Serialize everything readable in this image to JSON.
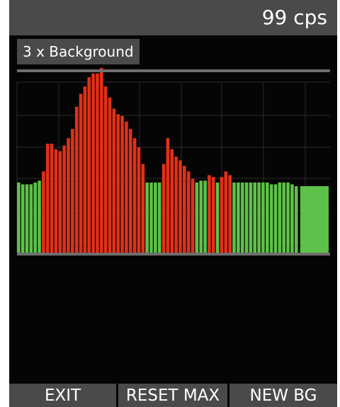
{
  "header": {
    "cps_text": "99 cps"
  },
  "mode": {
    "label": "3 x Background"
  },
  "softkeys": [
    {
      "label": "EXIT"
    },
    {
      "label": "RESET MAX"
    },
    {
      "label": "NEW BG"
    }
  ],
  "colors": {
    "below_threshold": "#5ec149",
    "above_threshold": "#e23018",
    "reference_line": "#6e6e6e",
    "grid": "#2a2a2a"
  },
  "chart_data": {
    "type": "bar",
    "ylim": [
      0,
      100
    ],
    "grid": true,
    "threshold_fraction_of_max": 0.38,
    "values": [
      38,
      37,
      37,
      37,
      38,
      39,
      44,
      59,
      59,
      56,
      55,
      58,
      62,
      67,
      79,
      86,
      90,
      95,
      97,
      97,
      100,
      90,
      84,
      78,
      75,
      74,
      71,
      67,
      62,
      57,
      48,
      38,
      38,
      38,
      38,
      48,
      62,
      56,
      52,
      50,
      47,
      44,
      40,
      38,
      39,
      39,
      42,
      41,
      38,
      41,
      44,
      42,
      38,
      38,
      38,
      38,
      38,
      38,
      38,
      38,
      38,
      37,
      37,
      38,
      38,
      38,
      37,
      36
    ],
    "categories_over_threshold": [
      6,
      7,
      8,
      9,
      10,
      11,
      12,
      13,
      14,
      15,
      16,
      17,
      18,
      19,
      20,
      21,
      22,
      23,
      24,
      25,
      26,
      27,
      28,
      29,
      30,
      35,
      36,
      37,
      38,
      39,
      40,
      41,
      42,
      46,
      47,
      49,
      50,
      51
    ],
    "current_value": 36
  }
}
